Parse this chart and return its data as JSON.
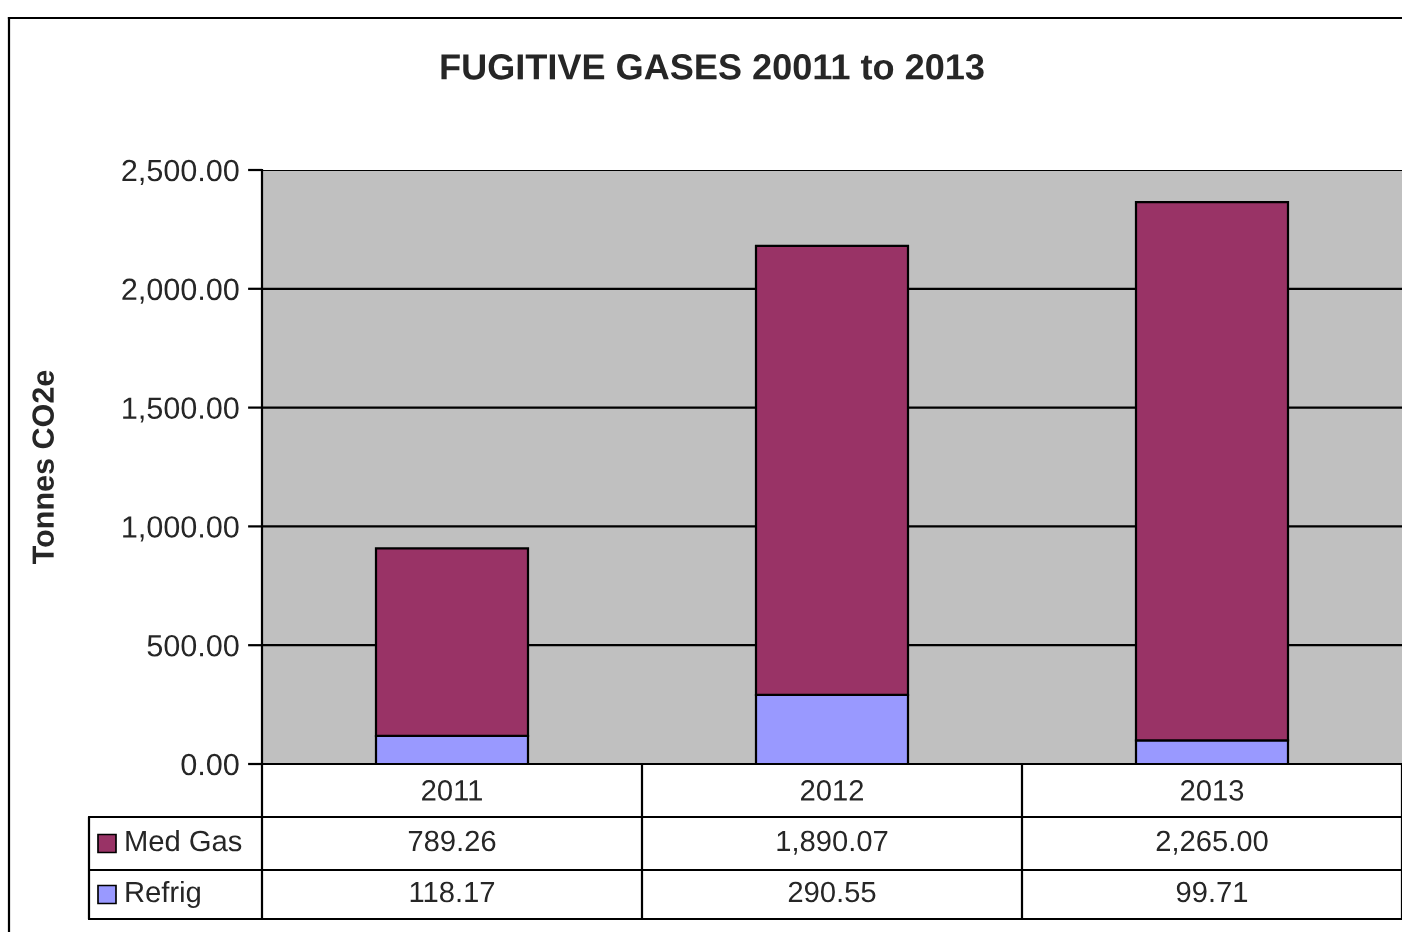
{
  "chart_data": {
    "type": "bar",
    "stacked": true,
    "title": "FUGITIVE GASES 20011 to 2013",
    "ylabel": "Tonnes CO2e",
    "categories": [
      "2011",
      "2012",
      "2013"
    ],
    "series": [
      {
        "name": "Refrig",
        "color": "#9999ff",
        "values": [
          118.17,
          290.55,
          99.71
        ],
        "value_labels": [
          "118.17",
          "290.55",
          "99.71"
        ]
      },
      {
        "name": "Med Gas",
        "color": "#993366",
        "values": [
          789.26,
          1890.07,
          2265.0
        ],
        "value_labels": [
          "789.26",
          "1,890.07",
          "2,265.00"
        ]
      }
    ],
    "ylim": [
      0,
      2500
    ],
    "yticks": [
      {
        "value": 0,
        "label": "0.00"
      },
      {
        "value": 500,
        "label": "500.00"
      },
      {
        "value": 1000,
        "label": "1,000.00"
      },
      {
        "value": 1500,
        "label": "1,500.00"
      },
      {
        "value": 2000,
        "label": "2,000.00"
      },
      {
        "value": 2500,
        "label": "2,500.00"
      }
    ],
    "grid": "y",
    "legend": "bottom"
  }
}
